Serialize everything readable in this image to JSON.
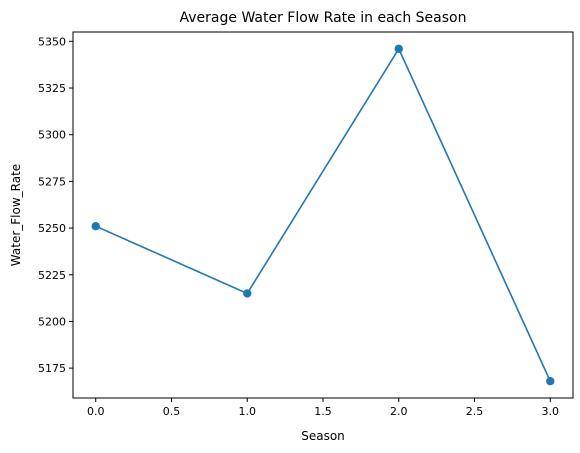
{
  "chart_data": {
    "type": "line",
    "title": "Average Water Flow Rate in each Season",
    "xlabel": "Season",
    "ylabel": "Water_Flow_Rate",
    "x": [
      0,
      1,
      2,
      3
    ],
    "series": [
      {
        "values": [
          5251,
          5215,
          5346,
          5168
        ],
        "color": "#1f77b4",
        "marker": "circle"
      }
    ],
    "xlim": [
      -0.15,
      3.15
    ],
    "ylim": [
      5159,
      5355
    ],
    "xticks": [
      0.0,
      0.5,
      1.0,
      1.5,
      2.0,
      2.5,
      3.0
    ],
    "xtick_labels": [
      "0.0",
      "0.5",
      "1.0",
      "1.5",
      "2.0",
      "2.5",
      "3.0"
    ],
    "yticks": [
      5175,
      5200,
      5225,
      5250,
      5275,
      5300,
      5325,
      5350
    ],
    "ytick_labels": [
      "5175",
      "5200",
      "5225",
      "5250",
      "5275",
      "5300",
      "5325",
      "5350"
    ],
    "grid": false,
    "legend": "none"
  }
}
